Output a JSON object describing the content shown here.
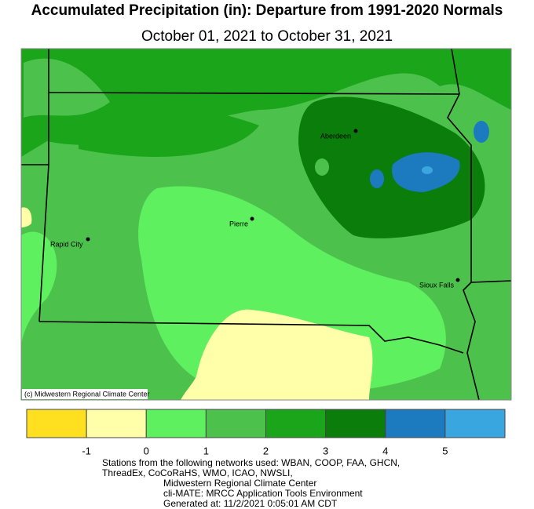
{
  "title": "Accumulated Precipitation (in): Departure from 1991-2020 Normals",
  "subtitle": "October 01, 2021 to October 31, 2021",
  "map": {
    "cities": [
      "Aberdeen",
      "Pierre",
      "Rapid City",
      "Sioux Falls"
    ],
    "credit": "(c) Midwestern Regional Climate Center"
  },
  "legend": {
    "colors": [
      "#ffe020",
      "#ffffaa",
      "#5ff05f",
      "#4cc24c",
      "#1aa51a",
      "#0a7d0a",
      "#1c7bbf",
      "#3aa6e0"
    ],
    "ticks": [
      -1,
      0,
      1,
      2,
      3,
      4,
      5
    ]
  },
  "footer": [
    "Stations from the following networks used: WBAN, COOP, FAA, GHCN,",
    "ThreadEx, CoCoRaHS, WMO, ICAO, NWSLI,",
    "Midwestern Regional Climate Center",
    "cli-MATE: MRCC Application Tools Environment",
    "Generated at: 11/2/2021 0:05:01 AM CDT"
  ]
}
